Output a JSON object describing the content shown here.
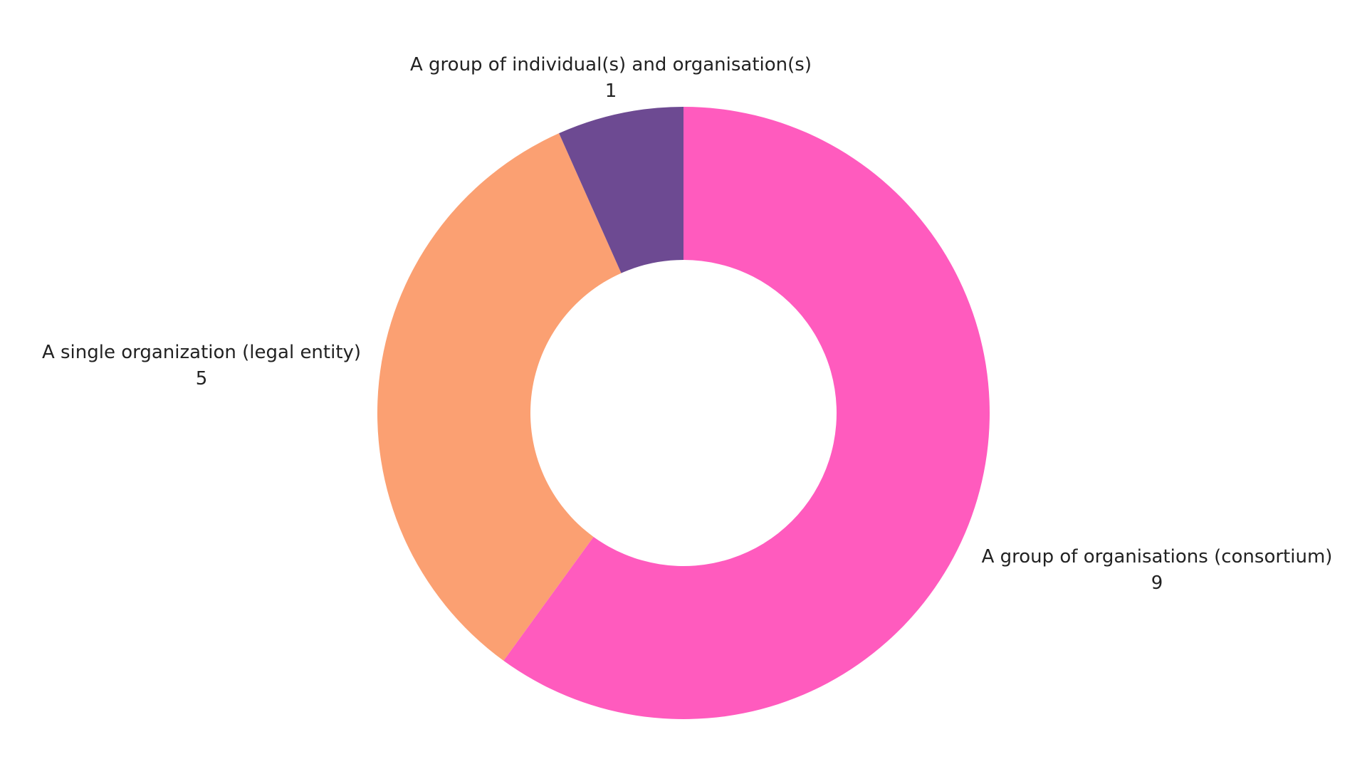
{
  "chart_data": {
    "type": "pie",
    "subtype": "donut",
    "title": "",
    "legend": "none",
    "slices": [
      {
        "label": "A group of organisations (consortium)",
        "value": 9,
        "value_label": "9",
        "color": "#FF5BBE"
      },
      {
        "label": "A single organization (legal entity)",
        "value": 5,
        "value_label": "5",
        "color": "#FBA072"
      },
      {
        "label": "A group of individual(s) and organisation(s)",
        "value": 1,
        "value_label": "1",
        "color": "#6D4A92"
      }
    ]
  }
}
